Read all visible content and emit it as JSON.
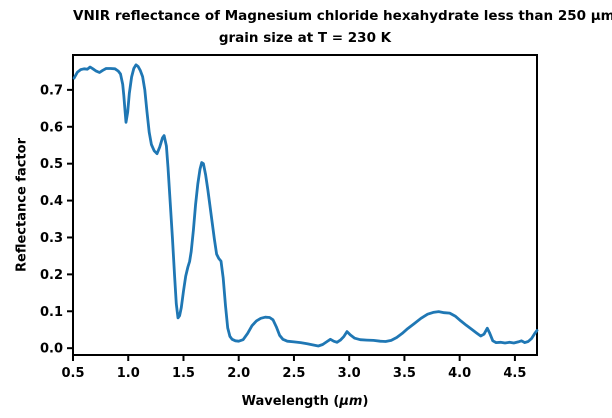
{
  "figure": {
    "title_line1": "VNIR reflectance of Magnesium chloride hexahydrate less than 250 μm",
    "title_line2": "grain size at T = 230 K",
    "xlabel_prefix": "Wavelength (",
    "xlabel_unit": "μm",
    "xlabel_suffix": ")",
    "background": "#ffffff",
    "text_color": "#000000"
  },
  "chart_data": {
    "type": "line",
    "title": "VNIR reflectance of Magnesium chloride hexahydrate less than 250 μm grain size at T = 230 K",
    "xlabel": "Wavelength (μm)",
    "ylabel": "Reflectance factor",
    "xlim": [
      0.5,
      4.7
    ],
    "ylim": [
      -0.0185,
      0.7945
    ],
    "x_ticks": [
      0.5,
      1.0,
      1.5,
      2.0,
      2.5,
      3.0,
      3.5,
      4.0,
      4.5
    ],
    "x_tick_labels": [
      "0.5",
      "1.0",
      "1.5",
      "2.0",
      "2.5",
      "3.0",
      "3.5",
      "4.0",
      "4.5"
    ],
    "y_ticks": [
      0.0,
      0.1,
      0.2,
      0.3,
      0.4,
      0.5,
      0.6,
      0.7
    ],
    "y_tick_labels": [
      "0.0",
      "0.1",
      "0.2",
      "0.3",
      "0.4",
      "0.5",
      "0.6",
      "0.7"
    ],
    "grid": false,
    "legend": false,
    "line_color": "#1f77b4",
    "axis_color": "#000000",
    "series": [
      {
        "name": "reflectance",
        "points": [
          [
            0.51,
            0.732
          ],
          [
            0.54,
            0.748
          ],
          [
            0.57,
            0.755
          ],
          [
            0.6,
            0.757
          ],
          [
            0.63,
            0.756
          ],
          [
            0.655,
            0.762
          ],
          [
            0.68,
            0.757
          ],
          [
            0.71,
            0.751
          ],
          [
            0.74,
            0.747
          ],
          [
            0.77,
            0.753
          ],
          [
            0.8,
            0.758
          ],
          [
            0.84,
            0.758
          ],
          [
            0.88,
            0.757
          ],
          [
            0.91,
            0.751
          ],
          [
            0.93,
            0.743
          ],
          [
            0.95,
            0.715
          ],
          [
            0.96,
            0.685
          ],
          [
            0.97,
            0.648
          ],
          [
            0.98,
            0.612
          ],
          [
            0.995,
            0.64
          ],
          [
            1.01,
            0.69
          ],
          [
            1.03,
            0.735
          ],
          [
            1.05,
            0.758
          ],
          [
            1.07,
            0.768
          ],
          [
            1.09,
            0.763
          ],
          [
            1.11,
            0.752
          ],
          [
            1.13,
            0.736
          ],
          [
            1.15,
            0.7
          ],
          [
            1.17,
            0.64
          ],
          [
            1.19,
            0.585
          ],
          [
            1.21,
            0.552
          ],
          [
            1.235,
            0.535
          ],
          [
            1.26,
            0.527
          ],
          [
            1.285,
            0.545
          ],
          [
            1.31,
            0.57
          ],
          [
            1.325,
            0.576
          ],
          [
            1.345,
            0.548
          ],
          [
            1.36,
            0.49
          ],
          [
            1.38,
            0.395
          ],
          [
            1.4,
            0.3
          ],
          [
            1.42,
            0.195
          ],
          [
            1.435,
            0.12
          ],
          [
            1.45,
            0.082
          ],
          [
            1.465,
            0.088
          ],
          [
            1.48,
            0.11
          ],
          [
            1.5,
            0.155
          ],
          [
            1.52,
            0.195
          ],
          [
            1.54,
            0.22
          ],
          [
            1.555,
            0.235
          ],
          [
            1.57,
            0.262
          ],
          [
            1.59,
            0.32
          ],
          [
            1.61,
            0.39
          ],
          [
            1.63,
            0.445
          ],
          [
            1.65,
            0.485
          ],
          [
            1.665,
            0.503
          ],
          [
            1.68,
            0.5
          ],
          [
            1.7,
            0.47
          ],
          [
            1.72,
            0.43
          ],
          [
            1.74,
            0.385
          ],
          [
            1.76,
            0.34
          ],
          [
            1.78,
            0.295
          ],
          [
            1.8,
            0.255
          ],
          [
            1.82,
            0.243
          ],
          [
            1.84,
            0.236
          ],
          [
            1.86,
            0.19
          ],
          [
            1.88,
            0.115
          ],
          [
            1.9,
            0.055
          ],
          [
            1.92,
            0.032
          ],
          [
            1.94,
            0.024
          ],
          [
            1.97,
            0.02
          ],
          [
            2.0,
            0.019
          ],
          [
            2.04,
            0.023
          ],
          [
            2.08,
            0.04
          ],
          [
            2.12,
            0.061
          ],
          [
            2.16,
            0.074
          ],
          [
            2.2,
            0.081
          ],
          [
            2.24,
            0.084
          ],
          [
            2.28,
            0.083
          ],
          [
            2.31,
            0.077
          ],
          [
            2.34,
            0.058
          ],
          [
            2.37,
            0.035
          ],
          [
            2.4,
            0.024
          ],
          [
            2.44,
            0.019
          ],
          [
            2.5,
            0.017
          ],
          [
            2.56,
            0.015
          ],
          [
            2.62,
            0.012
          ],
          [
            2.67,
            0.009
          ],
          [
            2.72,
            0.006
          ],
          [
            2.76,
            0.01
          ],
          [
            2.8,
            0.018
          ],
          [
            2.83,
            0.024
          ],
          [
            2.86,
            0.019
          ],
          [
            2.89,
            0.016
          ],
          [
            2.92,
            0.022
          ],
          [
            2.95,
            0.031
          ],
          [
            2.98,
            0.045
          ],
          [
            3.01,
            0.036
          ],
          [
            3.05,
            0.027
          ],
          [
            3.1,
            0.023
          ],
          [
            3.16,
            0.022
          ],
          [
            3.22,
            0.021
          ],
          [
            3.28,
            0.019
          ],
          [
            3.33,
            0.018
          ],
          [
            3.38,
            0.021
          ],
          [
            3.43,
            0.029
          ],
          [
            3.48,
            0.04
          ],
          [
            3.53,
            0.053
          ],
          [
            3.59,
            0.067
          ],
          [
            3.65,
            0.081
          ],
          [
            3.71,
            0.092
          ],
          [
            3.76,
            0.097
          ],
          [
            3.81,
            0.099
          ],
          [
            3.86,
            0.096
          ],
          [
            3.91,
            0.095
          ],
          [
            3.96,
            0.087
          ],
          [
            4.01,
            0.074
          ],
          [
            4.06,
            0.062
          ],
          [
            4.11,
            0.051
          ],
          [
            4.15,
            0.042
          ],
          [
            4.19,
            0.033
          ],
          [
            4.22,
            0.038
          ],
          [
            4.25,
            0.054
          ],
          [
            4.27,
            0.042
          ],
          [
            4.3,
            0.02
          ],
          [
            4.33,
            0.015
          ],
          [
            4.37,
            0.016
          ],
          [
            4.41,
            0.014
          ],
          [
            4.45,
            0.016
          ],
          [
            4.49,
            0.014
          ],
          [
            4.53,
            0.017
          ],
          [
            4.56,
            0.02
          ],
          [
            4.59,
            0.015
          ],
          [
            4.62,
            0.018
          ],
          [
            4.65,
            0.026
          ],
          [
            4.68,
            0.04
          ],
          [
            4.7,
            0.048
          ]
        ]
      }
    ]
  }
}
